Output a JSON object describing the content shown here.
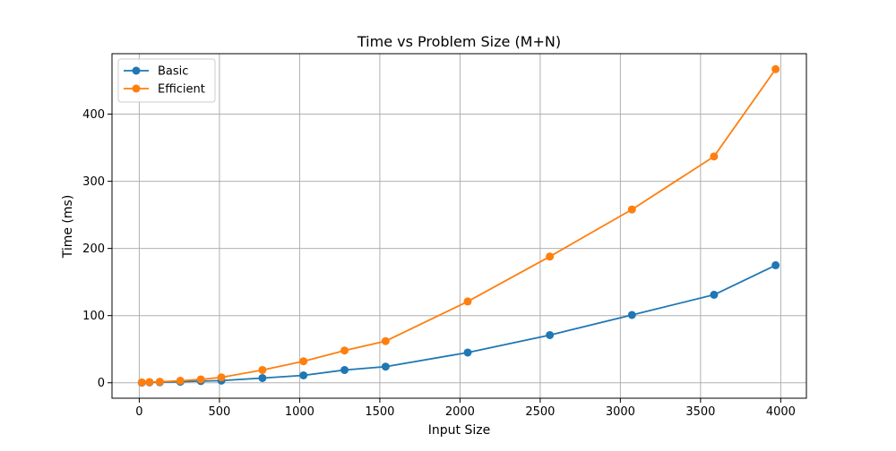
{
  "chart_data": {
    "type": "line",
    "title": "Time vs Problem Size (M+N)",
    "xlabel": "Input Size",
    "ylabel": "Time (ms)",
    "xlim": [
      -170,
      4160
    ],
    "ylim": [
      -23,
      490
    ],
    "xticks": [
      0,
      500,
      1000,
      1500,
      2000,
      2500,
      3000,
      3500,
      4000
    ],
    "xtick_labels": [
      "0",
      "500",
      "1000",
      "1500",
      "2000",
      "2500",
      "3000",
      "3500",
      "4000"
    ],
    "yticks": [
      0,
      100,
      200,
      300,
      400
    ],
    "ytick_labels": [
      "0",
      "100",
      "200",
      "300",
      "400"
    ],
    "grid": true,
    "legend_position": "top-left",
    "markers": "circle",
    "series": [
      {
        "name": "Basic",
        "color": "#1f77b4",
        "x": [
          16,
          64,
          128,
          256,
          384,
          512,
          768,
          1024,
          1280,
          1536,
          2048,
          2560,
          3072,
          3584,
          3968
        ],
        "y": [
          0.2,
          0.5,
          0.8,
          1.5,
          2.5,
          3.2,
          7,
          11,
          19,
          24,
          45,
          71,
          101,
          131,
          175
        ]
      },
      {
        "name": "Efficient",
        "color": "#ff7f0e",
        "x": [
          16,
          64,
          128,
          256,
          384,
          512,
          768,
          1024,
          1280,
          1536,
          2048,
          2560,
          3072,
          3584,
          3968
        ],
        "y": [
          0.5,
          1,
          1.5,
          3,
          5,
          8,
          19,
          32,
          48,
          62,
          121,
          188,
          258,
          337,
          467
        ]
      }
    ]
  }
}
